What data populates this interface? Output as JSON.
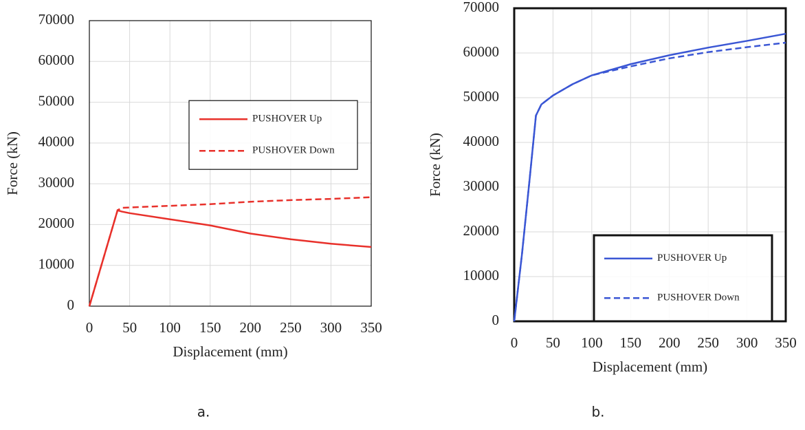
{
  "chart_data": [
    {
      "type": "line",
      "caption": "a.",
      "x_label": "Displacement (mm)",
      "y_label": "Force (kN)",
      "x": [
        0,
        35,
        40,
        50,
        100,
        150,
        200,
        250,
        300,
        350
      ],
      "series": [
        {
          "name": "PUSHOVER Up",
          "color": "#e8302a",
          "dashed": false,
          "values": [
            0,
            23500,
            23200,
            22800,
            21300,
            19800,
            17800,
            16400,
            15300,
            14500
          ]
        },
        {
          "name": "PUSHOVER Down",
          "color": "#e8302a",
          "dashed": true,
          "values": [
            0,
            23500,
            24100,
            24200,
            24600,
            25000,
            25600,
            26000,
            26300,
            26700
          ]
        }
      ],
      "xlim": [
        0,
        350
      ],
      "xticks": [
        0,
        50,
        100,
        150,
        200,
        250,
        300,
        350
      ],
      "ylim": [
        0,
        70000
      ],
      "yticks": [
        0,
        10000,
        20000,
        30000,
        40000,
        50000,
        60000,
        70000
      ],
      "grid": true,
      "legend": "upper right"
    },
    {
      "type": "line",
      "caption": "b.",
      "x_label": "Displacement (mm)",
      "y_label": "Force (kN)",
      "x": [
        0,
        10,
        20,
        28,
        35,
        50,
        75,
        100,
        150,
        200,
        250,
        300,
        350
      ],
      "series": [
        {
          "name": "PUSHOVER Up",
          "color": "#3a56d4",
          "dashed": false,
          "values": [
            0,
            15000,
            32000,
            46000,
            48500,
            50500,
            53000,
            55000,
            57500,
            59500,
            61200,
            62700,
            64300
          ]
        },
        {
          "name": "PUSHOVER Down",
          "color": "#3a56d4",
          "dashed": true,
          "values": [
            0,
            15000,
            32000,
            46000,
            48500,
            50500,
            53000,
            55000,
            57000,
            58800,
            60200,
            61300,
            62300
          ]
        }
      ],
      "xlim": [
        0,
        350
      ],
      "xticks": [
        0,
        50,
        100,
        150,
        200,
        250,
        300,
        350
      ],
      "ylim": [
        0,
        70000
      ],
      "yticks": [
        0,
        10000,
        20000,
        30000,
        40000,
        50000,
        60000,
        70000
      ],
      "grid": true,
      "legend": "lower right"
    }
  ]
}
